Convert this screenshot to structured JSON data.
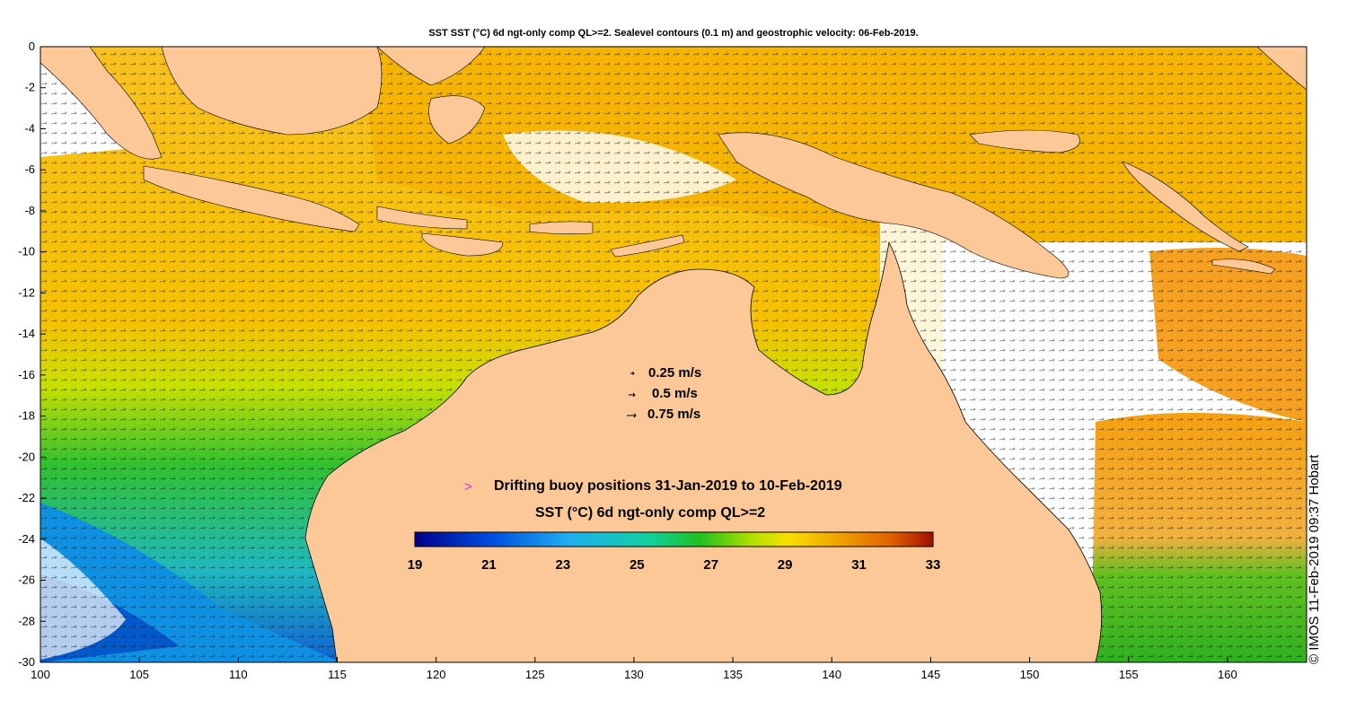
{
  "title": "SST SST (°C) 6d ngt-only comp QL>=2. Sealevel contours (0.1 m) and geostrophic velocity: 06-Feb-2019.",
  "axes": {
    "x_ticks": [
      "100",
      "105",
      "110",
      "115",
      "120",
      "125",
      "130",
      "135",
      "140",
      "145",
      "150",
      "155",
      "160"
    ],
    "y_ticks": [
      "0",
      "-2",
      "-4",
      "-6",
      "-8",
      "-10",
      "-12",
      "-14",
      "-16",
      "-18",
      "-20",
      "-22",
      "-24",
      "-26",
      "-28",
      "-30"
    ],
    "xlim": [
      100,
      164
    ],
    "ylim": [
      -30,
      0
    ]
  },
  "velocity_legend": [
    {
      "label": "0.25 m/s"
    },
    {
      "label": "0.5 m/s"
    },
    {
      "label": "0.75 m/s"
    }
  ],
  "buoy_legend": {
    "marker": ">",
    "marker_color": "#e030e0",
    "label": "Drifting buoy positions 31-Jan-2019 to 10-Feb-2019"
  },
  "colorbar": {
    "title": "SST (°C) 6d ngt-only comp QL>=2",
    "ticks": [
      "19",
      "21",
      "23",
      "25",
      "27",
      "29",
      "31",
      "33"
    ],
    "range": [
      19,
      33
    ]
  },
  "credit": "© IMOS 11-Feb-2019 09:37 Hobart",
  "colors": {
    "land": "#fcc898",
    "no_data": "#ffffff"
  }
}
